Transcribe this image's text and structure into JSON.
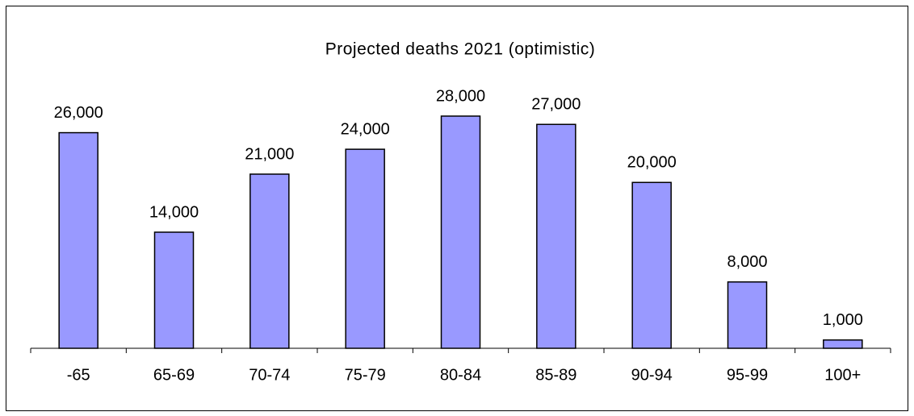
{
  "chart_data": {
    "type": "bar",
    "title": "Projected deaths 2021 (optimistic)",
    "categories": [
      "-65",
      "65-69",
      "70-74",
      "75-79",
      "80-84",
      "85-89",
      "90-94",
      "95-99",
      "100+"
    ],
    "values": [
      26000,
      14000,
      21000,
      24000,
      28000,
      27000,
      20000,
      8000,
      1000
    ],
    "value_labels": [
      "26,000",
      "14,000",
      "21,000",
      "24,000",
      "28,000",
      "27,000",
      "20,000",
      "8,000",
      "1,000"
    ],
    "color": "#9999ff"
  }
}
